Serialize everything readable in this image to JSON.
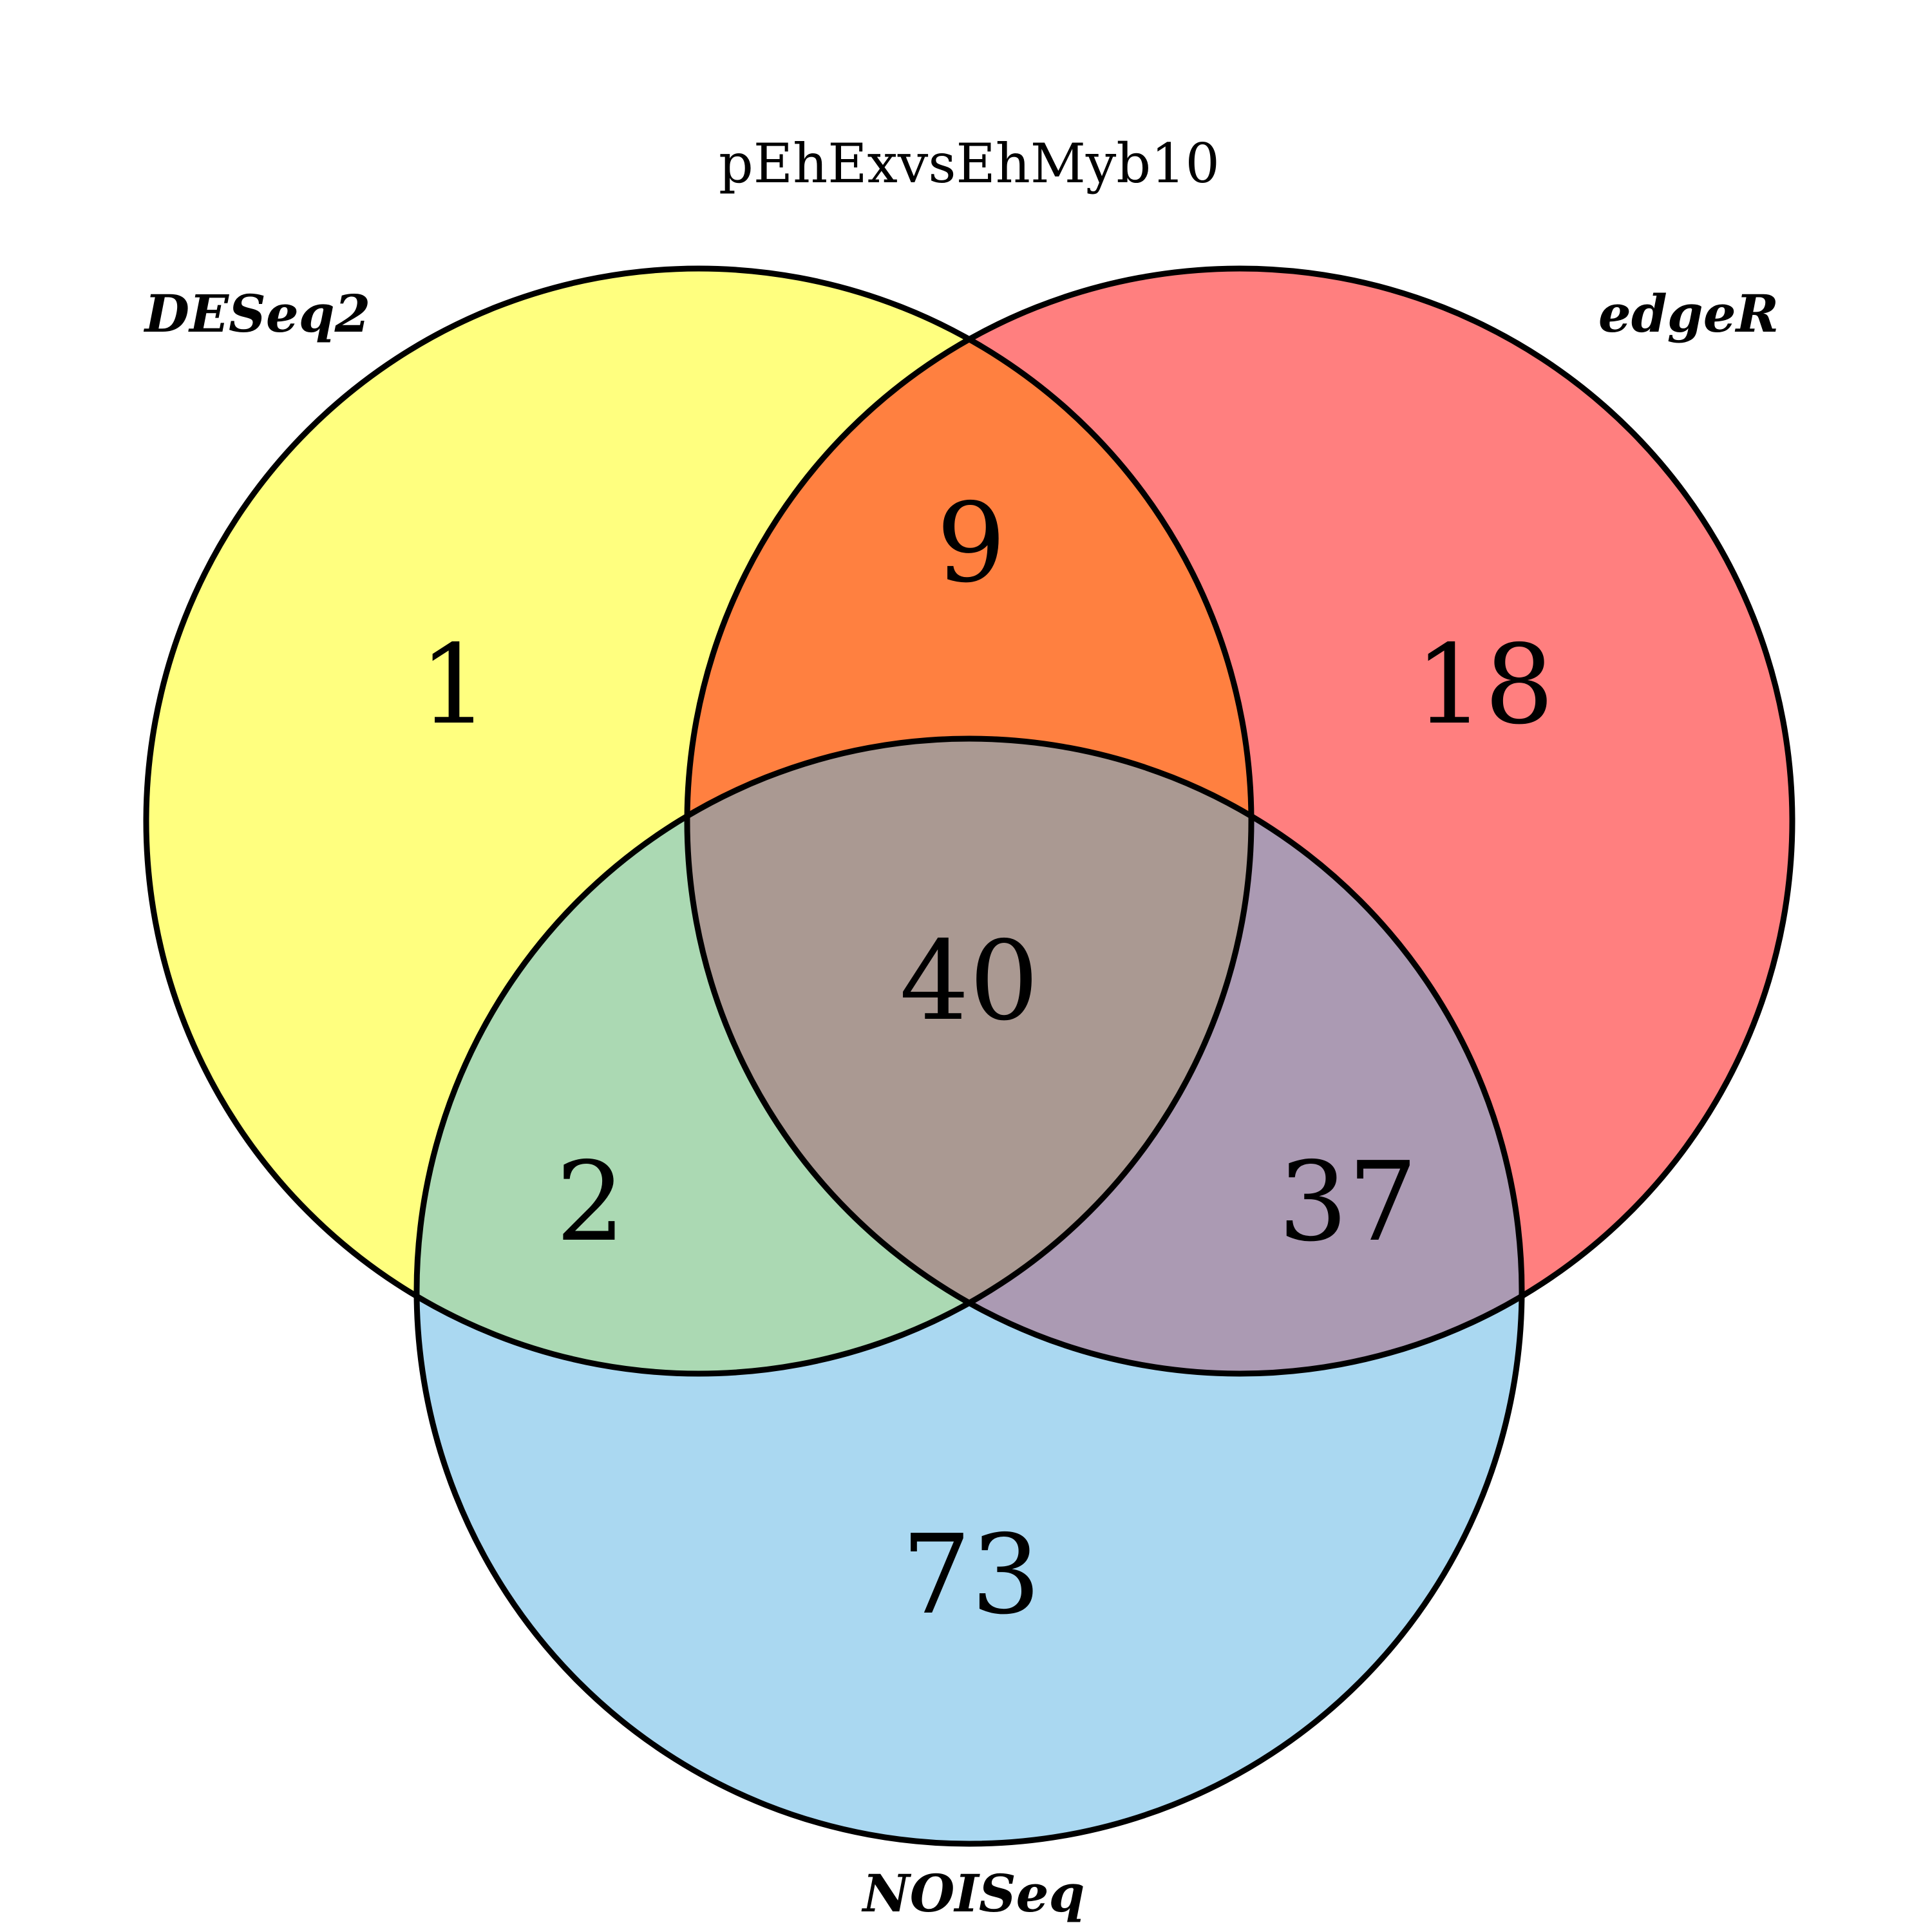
{
  "title": "pEhExvsEhMyb10",
  "sets": [
    {
      "name": "DESeq2",
      "color": "#ffff7f"
    },
    {
      "name": "edgeR",
      "color": "#ff7f7f"
    },
    {
      "name": "NOISeq",
      "color": "#aad8f1"
    }
  ],
  "regions": {
    "deseq2_only": "1",
    "edger_only": "18",
    "noiseq_only": "73",
    "deseq2_edger": "9",
    "deseq2_noiseq": "2",
    "edger_noiseq": "37",
    "all_three": "40"
  },
  "region_colors": {
    "deseq2_edger": "#ff8040",
    "deseq2_noiseq": "#abd9b3",
    "edger_noiseq": "#ab9ab3",
    "all_three": "#aa9992"
  }
}
